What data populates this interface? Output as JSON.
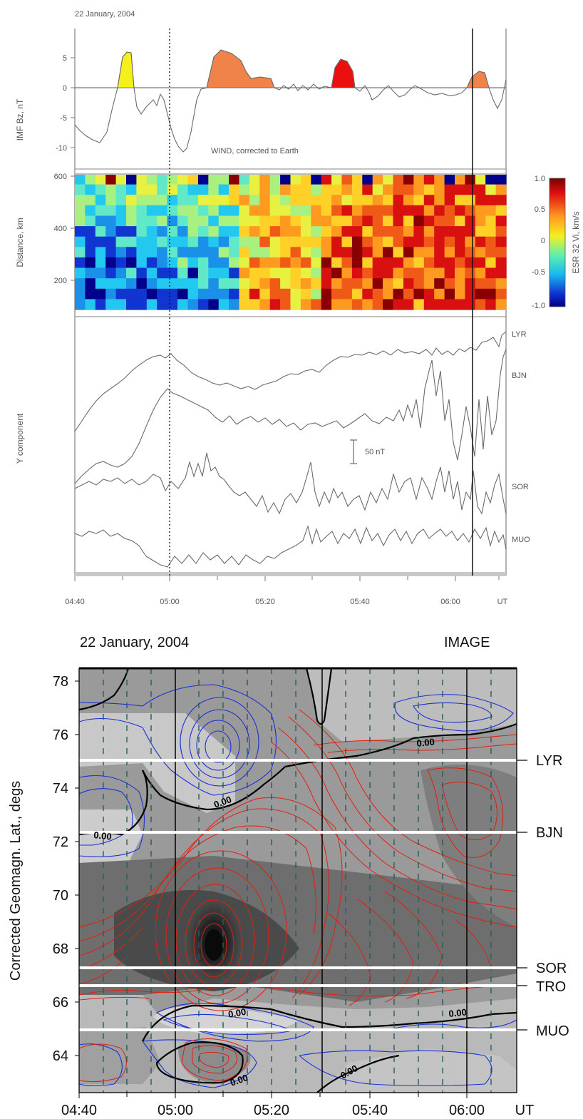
{
  "top_figure": {
    "date_label": "22 January, 2004",
    "time_ticks": [
      "04:40",
      "05:00",
      "05:20",
      "05:40",
      "06:00",
      "UT"
    ],
    "imf_panel": {
      "ylabel": "IMF Bz, nT",
      "yticks": [
        "5",
        "0",
        "-5",
        "-10"
      ],
      "annotation": "WIND, corrected to Earth"
    },
    "esr_panel": {
      "ylabel": "Distance, km",
      "yticks": [
        "600",
        "400",
        "200"
      ],
      "colorbar_label": "ESR 32 Vi, km/s",
      "colorbar_ticks": [
        "1.0",
        "0.5",
        "0",
        "-0.5",
        "-1.0"
      ]
    },
    "mag_panel": {
      "ylabel": "Y component",
      "scale_label": "50 nT",
      "stations": [
        "LYR",
        "BJN",
        "SOR",
        "MUO"
      ]
    }
  },
  "bottom_figure": {
    "date_label": "22 January, 2004",
    "source_label": "IMAGE",
    "ylabel": "Corrected Geomagn. Lat., degs",
    "yticks": [
      "78",
      "76",
      "74",
      "72",
      "70",
      "68",
      "66",
      "64"
    ],
    "xticks": [
      "04:40",
      "05:00",
      "05:20",
      "05:40",
      "06:00",
      "UT"
    ],
    "stations": [
      "LYR",
      "BJN",
      "SOR",
      "TRO",
      "MUO"
    ],
    "contour_labels": [
      "0.00",
      "0.00",
      "0.00",
      "0.00",
      "0.00",
      "0.00",
      "0.00"
    ]
  },
  "colors": {
    "positive_contour": "#e02010",
    "negative_contour": "#1a2fd8",
    "zero_contour": "#000000",
    "imf_fill_yellow": "#f5ef1a",
    "imf_fill_orange": "#f0834a",
    "imf_fill_red": "#ea1010"
  }
}
